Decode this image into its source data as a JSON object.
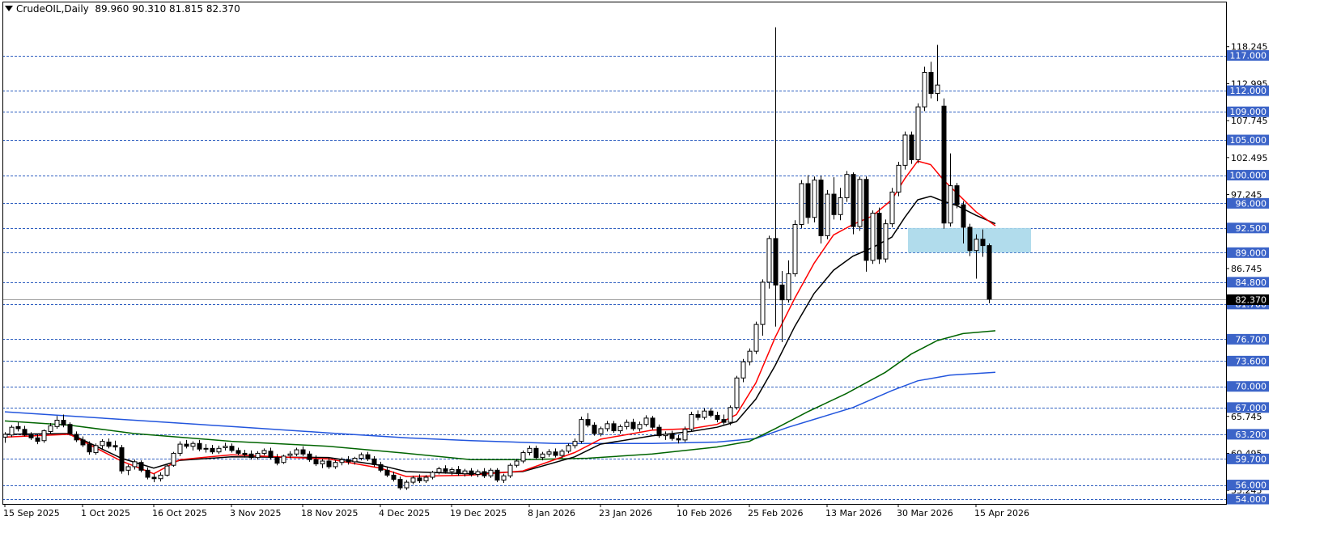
{
  "header": {
    "symbol": "CrudeOIL,Daily",
    "ohlc": "89.960 90.310 81.815 82.370"
  },
  "colors": {
    "bull": "#ffffff",
    "bear": "#000000",
    "ma_fast": "#ff0000",
    "ma_mid": "#000000",
    "ma_slow": "#006400",
    "ma_long": "#2255dd",
    "level_line": "#3060c0",
    "level_label_bg": "#3c64c8",
    "zone": "#a8d8ea",
    "last_price_bg": "#000000"
  },
  "chart_data": {
    "type": "candlestick",
    "ylim": [
      54,
      121.2
    ],
    "x_tick_labels": [
      {
        "label": "15 Sep 2025",
        "i": 0
      },
      {
        "label": "1 Oct 2025",
        "i": 12
      },
      {
        "label": "16 Oct 2025",
        "i": 23
      },
      {
        "label": "3 Nov 2025",
        "i": 35
      },
      {
        "label": "18 Nov 2025",
        "i": 46
      },
      {
        "label": "4 Dec 2025",
        "i": 58
      },
      {
        "label": "19 Dec 2025",
        "i": 69
      },
      {
        "label": "8 Jan 2026",
        "i": 81
      },
      {
        "label": "23 Jan 2026",
        "i": 92
      },
      {
        "label": "10 Feb 2026",
        "i": 104
      },
      {
        "label": "25 Feb 2026",
        "i": 115
      },
      {
        "label": "13 Mar 2026",
        "i": 127
      },
      {
        "label": "30 Mar 2026",
        "i": 138
      },
      {
        "label": "15 Apr 2026",
        "i": 150
      }
    ],
    "price_scale_ticks": [
      118.245,
      112.995,
      107.745,
      102.495,
      97.245,
      86.745,
      65.745,
      60.495,
      55.245
    ],
    "levels": [
      117.0,
      112.0,
      109.0,
      105.0,
      100.0,
      96.0,
      92.5,
      89.0,
      84.8,
      81.7,
      76.7,
      73.6,
      70.0,
      67.0,
      63.2,
      59.7,
      56.0,
      54.0
    ],
    "level_labels": [
      "117.000",
      "112.000",
      "109.000",
      "105.000",
      "100.000",
      "96.000",
      "92.500",
      "89.000",
      "84.800",
      "81.700",
      "76.700",
      "73.600",
      "70.000",
      "67.000",
      "63.200",
      "59.700",
      "56.000",
      "54.000"
    ],
    "last_price": 82.37,
    "last_price_label": "82.370",
    "zone": {
      "i_start": 140,
      "i_end": 158,
      "y_low": 89.0,
      "y_high": 92.5
    },
    "candles": [
      [
        62.8,
        63.5,
        62.0,
        63.2
      ],
      [
        63.1,
        64.5,
        62.8,
        64.2
      ],
      [
        64.3,
        64.9,
        63.6,
        64.0
      ],
      [
        63.9,
        64.4,
        62.9,
        63.1
      ],
      [
        63.1,
        63.5,
        62.4,
        62.7
      ],
      [
        62.7,
        63.3,
        61.8,
        62.2
      ],
      [
        62.3,
        63.9,
        62.0,
        63.7
      ],
      [
        63.6,
        64.8,
        63.2,
        64.4
      ],
      [
        64.3,
        65.8,
        64.0,
        65.2
      ],
      [
        65.2,
        66.0,
        64.2,
        64.5
      ],
      [
        64.6,
        64.9,
        63.0,
        63.3
      ],
      [
        63.2,
        63.6,
        62.1,
        62.4
      ],
      [
        62.4,
        62.9,
        61.4,
        61.7
      ],
      [
        61.8,
        62.2,
        60.3,
        60.7
      ],
      [
        60.6,
        61.9,
        60.3,
        61.6
      ],
      [
        61.6,
        62.5,
        61.0,
        62.2
      ],
      [
        62.1,
        62.6,
        61.2,
        61.5
      ],
      [
        61.6,
        62.3,
        60.9,
        61.4
      ],
      [
        61.3,
        61.7,
        57.6,
        58.0
      ],
      [
        58.1,
        58.9,
        57.4,
        58.6
      ],
      [
        58.6,
        59.6,
        58.2,
        59.3
      ],
      [
        59.2,
        59.5,
        57.8,
        58.1
      ],
      [
        58.1,
        58.5,
        56.8,
        57.1
      ],
      [
        57.1,
        57.6,
        56.4,
        56.9
      ],
      [
        56.9,
        57.8,
        56.5,
        57.4
      ],
      [
        57.4,
        58.9,
        57.2,
        58.7
      ],
      [
        58.8,
        60.7,
        58.6,
        60.5
      ],
      [
        60.5,
        62.2,
        60.1,
        61.8
      ],
      [
        61.8,
        62.4,
        61.2,
        61.5
      ],
      [
        61.5,
        62.2,
        60.9,
        61.9
      ],
      [
        61.9,
        62.4,
        60.8,
        61.1
      ],
      [
        61.1,
        61.8,
        60.6,
        61.2
      ],
      [
        61.2,
        61.7,
        60.4,
        60.7
      ],
      [
        60.7,
        61.6,
        60.4,
        61.2
      ],
      [
        61.3,
        62.0,
        60.9,
        61.5
      ],
      [
        61.5,
        61.9,
        60.6,
        60.9
      ],
      [
        60.9,
        61.3,
        60.2,
        60.5
      ],
      [
        60.5,
        61.0,
        59.9,
        60.3
      ],
      [
        60.4,
        60.9,
        59.6,
        59.9
      ],
      [
        59.9,
        60.8,
        59.6,
        60.5
      ],
      [
        60.5,
        61.2,
        60.2,
        60.9
      ],
      [
        60.8,
        61.3,
        59.6,
        59.9
      ],
      [
        59.9,
        60.4,
        58.8,
        59.1
      ],
      [
        59.2,
        60.3,
        59.0,
        60.1
      ],
      [
        60.2,
        60.8,
        59.8,
        60.4
      ],
      [
        60.4,
        61.3,
        60.1,
        61.0
      ],
      [
        61.0,
        61.5,
        60.1,
        60.4
      ],
      [
        60.4,
        60.8,
        59.3,
        59.6
      ],
      [
        59.6,
        60.2,
        58.7,
        59.0
      ],
      [
        59.0,
        59.7,
        58.4,
        59.4
      ],
      [
        59.4,
        59.9,
        58.3,
        58.6
      ],
      [
        58.6,
        59.5,
        58.3,
        59.2
      ],
      [
        59.2,
        59.9,
        58.8,
        59.6
      ],
      [
        59.6,
        60.1,
        58.9,
        59.3
      ],
      [
        59.3,
        60.0,
        58.9,
        59.8
      ],
      [
        59.8,
        60.6,
        59.5,
        60.3
      ],
      [
        60.3,
        60.7,
        59.4,
        59.7
      ],
      [
        59.7,
        60.1,
        58.6,
        58.9
      ],
      [
        58.9,
        59.3,
        57.8,
        58.1
      ],
      [
        58.1,
        58.5,
        57.1,
        57.4
      ],
      [
        57.4,
        57.9,
        56.5,
        56.8
      ],
      [
        56.8,
        57.2,
        55.3,
        55.6
      ],
      [
        55.6,
        56.7,
        55.3,
        56.4
      ],
      [
        56.4,
        57.3,
        56.1,
        57.0
      ],
      [
        57.0,
        57.5,
        56.3,
        56.6
      ],
      [
        56.6,
        57.4,
        56.3,
        57.1
      ],
      [
        57.1,
        58.0,
        56.8,
        57.8
      ],
      [
        57.8,
        58.6,
        57.5,
        58.3
      ],
      [
        58.3,
        58.8,
        57.6,
        57.9
      ],
      [
        57.9,
        58.5,
        57.4,
        58.2
      ],
      [
        58.2,
        58.7,
        57.3,
        57.6
      ],
      [
        57.6,
        58.3,
        57.2,
        58.0
      ],
      [
        58.0,
        58.4,
        57.2,
        57.5
      ],
      [
        57.5,
        58.2,
        57.1,
        57.9
      ],
      [
        57.9,
        58.4,
        57.0,
        57.3
      ],
      [
        57.3,
        58.4,
        57.0,
        58.1
      ],
      [
        58.1,
        58.4,
        56.4,
        56.7
      ],
      [
        56.7,
        57.6,
        56.3,
        57.3
      ],
      [
        57.3,
        59.1,
        57.0,
        58.8
      ],
      [
        58.8,
        59.7,
        58.5,
        59.4
      ],
      [
        59.4,
        60.9,
        59.1,
        60.6
      ],
      [
        60.6,
        61.6,
        60.2,
        61.2
      ],
      [
        61.2,
        61.6,
        59.6,
        59.9
      ],
      [
        59.9,
        60.7,
        59.5,
        60.4
      ],
      [
        60.4,
        61.1,
        60.0,
        60.7
      ],
      [
        60.7,
        61.2,
        59.9,
        60.2
      ],
      [
        60.2,
        61.1,
        59.8,
        60.8
      ],
      [
        60.8,
        61.9,
        60.5,
        61.6
      ],
      [
        61.6,
        62.6,
        61.2,
        62.2
      ],
      [
        62.2,
        65.7,
        61.9,
        65.3
      ],
      [
        65.3,
        66.2,
        64.2,
        64.5
      ],
      [
        64.5,
        64.9,
        63.0,
        63.3
      ],
      [
        63.3,
        64.3,
        62.9,
        64.0
      ],
      [
        64.0,
        65.1,
        63.6,
        64.7
      ],
      [
        64.7,
        65.1,
        63.4,
        63.7
      ],
      [
        63.7,
        64.6,
        63.3,
        64.3
      ],
      [
        64.3,
        65.3,
        63.9,
        64.9
      ],
      [
        64.9,
        65.4,
        63.7,
        64.0
      ],
      [
        64.0,
        65.0,
        63.6,
        64.6
      ],
      [
        64.6,
        65.9,
        64.3,
        65.5
      ],
      [
        65.5,
        65.8,
        63.9,
        64.2
      ],
      [
        64.2,
        64.6,
        62.7,
        63.0
      ],
      [
        63.0,
        63.6,
        62.4,
        63.2
      ],
      [
        63.2,
        63.7,
        62.3,
        62.6
      ],
      [
        62.6,
        63.1,
        61.9,
        62.4
      ],
      [
        62.4,
        64.3,
        62.1,
        63.9
      ],
      [
        63.9,
        66.4,
        63.6,
        66.0
      ],
      [
        66.0,
        66.6,
        65.2,
        65.6
      ],
      [
        65.6,
        66.9,
        65.3,
        66.5
      ],
      [
        66.5,
        66.9,
        65.6,
        65.9
      ],
      [
        65.9,
        66.4,
        64.9,
        65.3
      ],
      [
        65.3,
        66.0,
        64.6,
        64.9
      ],
      [
        64.9,
        67.3,
        64.5,
        67.0
      ],
      [
        67.0,
        71.5,
        66.7,
        71.2
      ],
      [
        71.2,
        73.9,
        70.6,
        73.5
      ],
      [
        73.5,
        75.4,
        73.0,
        75.0
      ],
      [
        75.0,
        79.2,
        74.6,
        78.8
      ],
      [
        78.8,
        85.2,
        77.2,
        84.8
      ],
      [
        84.8,
        91.4,
        83.9,
        91.0
      ],
      [
        91.0,
        121.0,
        78.5,
        84.4
      ],
      [
        84.4,
        86.4,
        76.3,
        82.3
      ],
      [
        82.3,
        87.9,
        81.9,
        86.0
      ],
      [
        86.0,
        93.6,
        85.6,
        93.0
      ],
      [
        93.0,
        99.3,
        92.5,
        98.8
      ],
      [
        98.8,
        100.0,
        93.1,
        94.0
      ],
      [
        94.0,
        99.8,
        93.3,
        99.3
      ],
      [
        99.3,
        99.9,
        90.3,
        91.4
      ],
      [
        91.4,
        97.9,
        90.9,
        97.3
      ],
      [
        97.3,
        99.7,
        93.7,
        94.4
      ],
      [
        94.4,
        98.2,
        93.6,
        96.8
      ],
      [
        96.8,
        100.6,
        96.2,
        100.1
      ],
      [
        100.1,
        100.4,
        91.6,
        92.7
      ],
      [
        92.7,
        99.8,
        92.1,
        99.4
      ],
      [
        99.4,
        99.8,
        86.3,
        87.9
      ],
      [
        87.9,
        95.0,
        87.4,
        94.6
      ],
      [
        94.6,
        95.4,
        87.4,
        88.1
      ],
      [
        88.1,
        93.7,
        87.6,
        93.1
      ],
      [
        93.1,
        98.2,
        92.6,
        97.6
      ],
      [
        97.6,
        101.9,
        97.0,
        101.4
      ],
      [
        101.4,
        106.2,
        100.8,
        105.7
      ],
      [
        105.7,
        106.2,
        101.6,
        102.2
      ],
      [
        102.2,
        110.2,
        101.7,
        109.7
      ],
      [
        109.7,
        115.4,
        109.1,
        114.6
      ],
      [
        114.6,
        116.1,
        110.9,
        111.6
      ],
      [
        111.6,
        118.5,
        110.5,
        112.8
      ],
      [
        109.8,
        110.9,
        92.4,
        93.2
      ],
      [
        93.2,
        103.1,
        92.7,
        98.5
      ],
      [
        98.5,
        98.9,
        95.3,
        95.8
      ],
      [
        95.8,
        96.3,
        90.3,
        92.6
      ],
      [
        92.6,
        93.1,
        88.5,
        89.3
      ],
      [
        89.3,
        91.6,
        85.3,
        90.9
      ],
      [
        90.9,
        92.3,
        88.4,
        90.0
      ],
      [
        90.0,
        90.3,
        81.8,
        82.4
      ]
    ],
    "ma_fast": [
      [
        0,
        62.8
      ],
      [
        10,
        63.2
      ],
      [
        18,
        59.4
      ],
      [
        23,
        57.6
      ],
      [
        27,
        59.6
      ],
      [
        35,
        60.3
      ],
      [
        50,
        59.7
      ],
      [
        58,
        58.4
      ],
      [
        62,
        57.2
      ],
      [
        72,
        57.4
      ],
      [
        80,
        58.0
      ],
      [
        88,
        60.6
      ],
      [
        92,
        62.5
      ],
      [
        100,
        63.8
      ],
      [
        106,
        64.0
      ],
      [
        110,
        64.6
      ],
      [
        113,
        66.0
      ],
      [
        116,
        70.5
      ],
      [
        119,
        77.0
      ],
      [
        122,
        82.5
      ],
      [
        125,
        87.5
      ],
      [
        128,
        91.5
      ],
      [
        131,
        93.0
      ],
      [
        134,
        94.2
      ],
      [
        137,
        96.5
      ],
      [
        139,
        99.5
      ],
      [
        141,
        102.0
      ],
      [
        143,
        101.5
      ],
      [
        145,
        99.3
      ],
      [
        147,
        97.5
      ],
      [
        150,
        94.8
      ],
      [
        153,
        92.8
      ]
    ],
    "ma_mid": [
      [
        0,
        63.2
      ],
      [
        10,
        63.3
      ],
      [
        18,
        59.8
      ],
      [
        23,
        58.4
      ],
      [
        27,
        59.5
      ],
      [
        35,
        60.0
      ],
      [
        50,
        59.9
      ],
      [
        58,
        58.8
      ],
      [
        62,
        57.9
      ],
      [
        72,
        57.6
      ],
      [
        80,
        57.9
      ],
      [
        88,
        60.0
      ],
      [
        92,
        61.8
      ],
      [
        100,
        63.0
      ],
      [
        106,
        63.6
      ],
      [
        110,
        64.2
      ],
      [
        113,
        65.0
      ],
      [
        116,
        68.2
      ],
      [
        119,
        73.0
      ],
      [
        122,
        78.5
      ],
      [
        125,
        83.2
      ],
      [
        128,
        86.5
      ],
      [
        131,
        88.5
      ],
      [
        134,
        89.7
      ],
      [
        137,
        91.2
      ],
      [
        139,
        94.0
      ],
      [
        141,
        96.5
      ],
      [
        143,
        97.0
      ],
      [
        145,
        96.3
      ],
      [
        147,
        95.7
      ],
      [
        150,
        94.3
      ],
      [
        153,
        93.1
      ]
    ],
    "ma_slow": [
      [
        0,
        65.1
      ],
      [
        10,
        64.5
      ],
      [
        20,
        63.3
      ],
      [
        35,
        62.2
      ],
      [
        50,
        61.5
      ],
      [
        62,
        60.5
      ],
      [
        72,
        59.6
      ],
      [
        80,
        59.6
      ],
      [
        90,
        59.8
      ],
      [
        100,
        60.4
      ],
      [
        110,
        61.4
      ],
      [
        115,
        62.2
      ],
      [
        119,
        64.0
      ],
      [
        124,
        66.4
      ],
      [
        130,
        69.0
      ],
      [
        136,
        72.0
      ],
      [
        140,
        74.6
      ],
      [
        144,
        76.5
      ],
      [
        148,
        77.5
      ],
      [
        153,
        77.9
      ]
    ],
    "ma_long": [
      [
        0,
        66.4
      ],
      [
        20,
        65.2
      ],
      [
        35,
        64.3
      ],
      [
        50,
        63.4
      ],
      [
        62,
        62.7
      ],
      [
        72,
        62.3
      ],
      [
        85,
        61.9
      ],
      [
        100,
        61.9
      ],
      [
        110,
        62.1
      ],
      [
        116,
        62.6
      ],
      [
        121,
        64.2
      ],
      [
        126,
        65.6
      ],
      [
        131,
        67.0
      ],
      [
        137,
        69.4
      ],
      [
        141,
        70.8
      ],
      [
        146,
        71.6
      ],
      [
        153,
        72.0
      ]
    ]
  }
}
